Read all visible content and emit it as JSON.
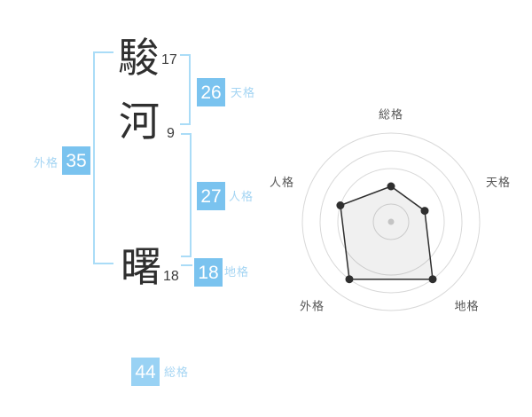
{
  "name_analysis": {
    "characters": [
      {
        "char": "駿",
        "strokes": "17"
      },
      {
        "char": "河",
        "strokes": "9"
      },
      {
        "char": "曙",
        "strokes": "18"
      }
    ],
    "badges": {
      "tenkaku": {
        "value": "26",
        "label": "天格"
      },
      "jinkaku": {
        "value": "27",
        "label": "人格"
      },
      "chikaku": {
        "value": "18",
        "label": "地格"
      },
      "gaikaku": {
        "value": "35",
        "label": "外格"
      },
      "soukaku": {
        "value": "44",
        "label": "総格"
      }
    }
  },
  "colors": {
    "badge_blue": "#7ac3ef",
    "badge_blue_light": "#99d2f4",
    "bracket_blue": "#aadcf7",
    "label_blue": "#a5d5f3",
    "chart_ring": "#d8d8d8",
    "chart_label": "#555555",
    "chart_line": "#2f2f2f",
    "chart_center_dot": "#c4c4c4"
  },
  "chart_data": {
    "type": "radar",
    "categories": [
      "総格",
      "天格",
      "地格",
      "外格",
      "人格"
    ],
    "values": [
      40,
      40,
      80,
      80,
      60
    ],
    "scale": {
      "min": 0,
      "max": 100,
      "rings": [
        20,
        60,
        80,
        100
      ]
    },
    "title": "",
    "legend_position": "none",
    "grid": "circular"
  }
}
